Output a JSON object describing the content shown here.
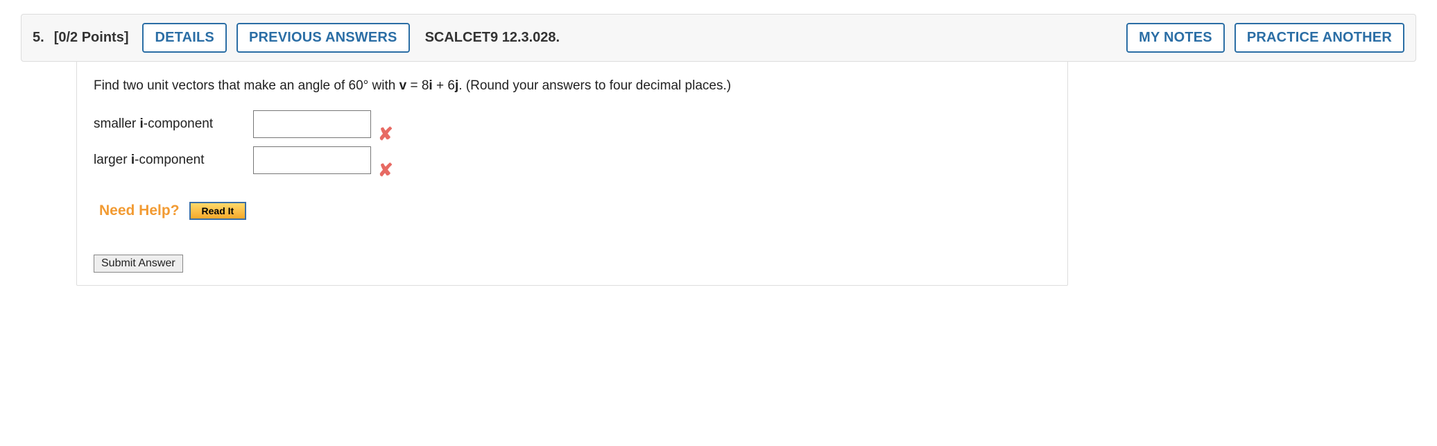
{
  "header": {
    "number": "5.",
    "points": "[0/2 Points]",
    "details_label": "DETAILS",
    "prev_answers_label": "PREVIOUS ANSWERS",
    "ref_code": "SCALCET9 12.3.028.",
    "my_notes_label": "MY NOTES",
    "practice_label": "PRACTICE ANOTHER"
  },
  "question": {
    "prefix": "Find two unit vectors that make an angle of 60° with ",
    "v_bold": "v",
    "mid": " = 8",
    "i_bold": "i",
    "mid2": " + 6",
    "j_bold": "j",
    "suffix": ". (Round your answers to four decimal places.)"
  },
  "rows": [
    {
      "label_prefix": "smaller ",
      "label_bold": "i",
      "label_suffix": "-component",
      "value": ""
    },
    {
      "label_prefix": "larger ",
      "label_bold": "i",
      "label_suffix": "-component",
      "value": ""
    }
  ],
  "incorrect_glyph": "✘",
  "need_help": {
    "label": "Need Help?",
    "read_label": "Read It"
  },
  "submit_label": "Submit Answer"
}
